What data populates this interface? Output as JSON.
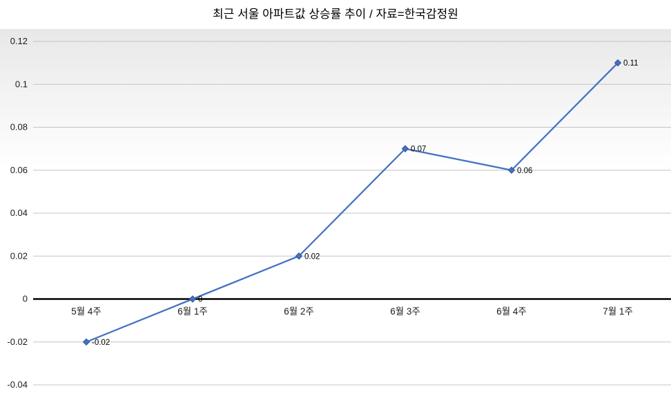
{
  "title": "최근 서울 아파트값 상승률 추이 / 자료=한국감정원",
  "chart_data": {
    "type": "line",
    "title": "최근 서울 아파트값 상승률 추이 / 자료=한국감정원",
    "categories": [
      "5월 4주",
      "6월 1주",
      "6월 2주",
      "6월 3주",
      "6월 4주",
      "7월 1주"
    ],
    "values": [
      -0.02,
      0,
      0.02,
      0.07,
      0.06,
      0.11
    ],
    "data_labels": [
      "-0.02",
      "0",
      "0.02",
      "0.07",
      "0.06",
      "0.11"
    ],
    "xlabel": "",
    "ylabel": "",
    "ylim": [
      -0.04,
      0.12
    ],
    "ytick_labels": [
      "-0.04",
      "-0.02",
      "0",
      "0.02",
      "0.04",
      "0.06",
      "0.08",
      "0.1",
      "0.12"
    ],
    "grid": true,
    "legend_position": "none",
    "marker": "diamond",
    "colors": {
      "line": "#4472C4",
      "marker_edge": "#2E5597",
      "grid": "#c3c3c3",
      "zero_line": "#000000",
      "background_top": "#e8e8e8",
      "background_bottom": "#ffffff",
      "tick_text": "#1a1a1a",
      "label_text": "#000000",
      "title_text": "#000000"
    }
  }
}
